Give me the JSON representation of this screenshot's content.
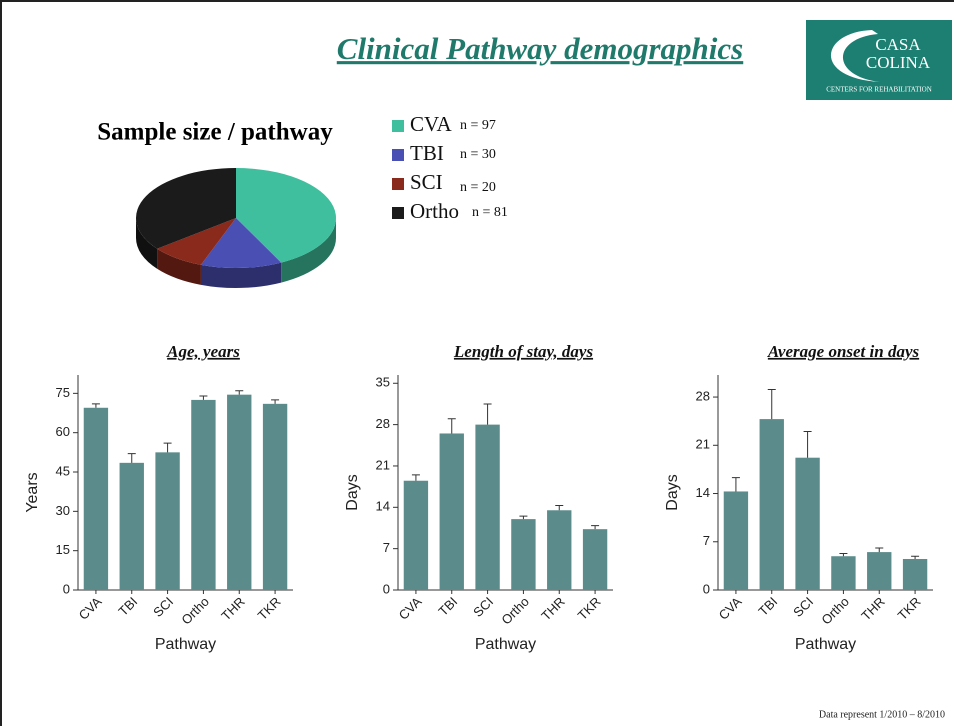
{
  "title": "Clinical Pathway demographics",
  "logo": {
    "line1": "CASA",
    "line2": "COLINA",
    "tagline": "CENTERS FOR REHABILITATION"
  },
  "footnote": "Data represent 1/2010 – 8/2010",
  "chart_data": [
    {
      "type": "pie",
      "title": "Sample size / pathway",
      "categories": [
        "CVA",
        "TBI",
        "SCI",
        "Ortho"
      ],
      "values": [
        97,
        30,
        20,
        81
      ],
      "value_labels": [
        "n = 97",
        "n = 30",
        "n = 20",
        "n = 81"
      ],
      "colors": [
        "#3fbf9d",
        "#4a4fb4",
        "#8a2a1c",
        "#1b1b1b"
      ]
    },
    {
      "type": "bar",
      "title": "Age, years",
      "ylabel": "Years",
      "xlabel": "Pathway",
      "categories": [
        "CVA",
        "TBI",
        "SCI",
        "Ortho",
        "THR",
        "TKR"
      ],
      "values": [
        69.5,
        48.5,
        52.5,
        72.5,
        74.5,
        71
      ],
      "errors": [
        1.5,
        3.5,
        3.5,
        1.5,
        1.5,
        1.5
      ],
      "color": "#5b8b8b",
      "ylim": [
        0,
        82
      ],
      "yticks": [
        0,
        15,
        30,
        45,
        60,
        75
      ]
    },
    {
      "type": "bar",
      "title": "Length of stay, days",
      "ylabel": "Days",
      "xlabel": "Pathway",
      "categories": [
        "CVA",
        "TBI",
        "SCI",
        "Ortho",
        "THR",
        "TKR"
      ],
      "values": [
        18.5,
        26.5,
        28,
        12,
        13.5,
        10.3
      ],
      "errors": [
        1,
        2.5,
        3.5,
        0.5,
        0.8,
        0.6
      ],
      "color": "#5b8b8b",
      "ylim": [
        0,
        36.4
      ],
      "yticks": [
        0,
        7,
        14,
        21,
        28,
        35
      ]
    },
    {
      "type": "bar",
      "title": "Average onset in days",
      "ylabel": "Days",
      "xlabel": "Pathway",
      "categories": [
        "CVA",
        "TBI",
        "SCI",
        "Ortho",
        "THR",
        "TKR"
      ],
      "values": [
        14.3,
        24.8,
        19.2,
        4.9,
        5.5,
        4.5
      ],
      "errors": [
        2,
        4.3,
        3.8,
        0.4,
        0.6,
        0.4
      ],
      "color": "#5b8b8b",
      "ylim": [
        0,
        31.2
      ],
      "yticks": [
        0,
        7,
        14,
        21,
        28
      ]
    }
  ]
}
